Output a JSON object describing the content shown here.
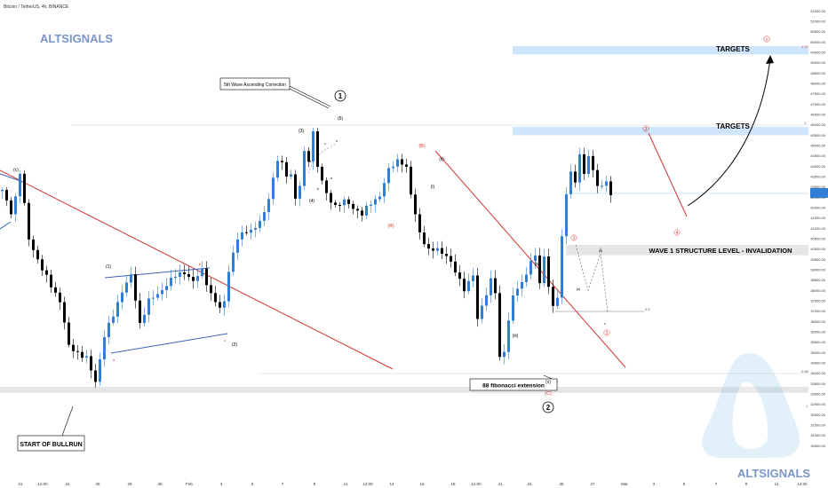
{
  "header": {
    "symbol_label": "Bitcoin / TetherUS, 4h, BINANCE"
  },
  "watermark": {
    "top": "ALTSIGNALS",
    "bottom": "ALTSIGNALS"
  },
  "colors": {
    "up": "#2f7fd6",
    "down": "#000000",
    "trend": "#d23434",
    "band": "#cfe5fb",
    "invalidation": "#e6e6e6",
    "label_red": "#d23434",
    "blue_line": "#3a63b8"
  },
  "chart_data": {
    "type": "candlestick",
    "title": "Bitcoin / TetherUS, 4h, BINANCE",
    "y_axis": {
      "min": 30000,
      "max": 51500,
      "position": "right",
      "ticks": [
        30500,
        31000,
        31500,
        32000,
        32500,
        33000,
        33500,
        34000,
        34500,
        35000,
        35500,
        36000,
        36500,
        37000,
        37500,
        38000,
        38500,
        39000,
        39500,
        40000,
        40500,
        41000,
        41500,
        42000,
        42500,
        43000,
        43500,
        44000,
        44500,
        45000,
        45500,
        46000,
        46500,
        47000,
        47500,
        48000,
        48500,
        49000,
        49500,
        50000,
        50500,
        51000,
        51500
      ]
    },
    "x_axis": {
      "tick_labels": [
        "21",
        "12:00",
        "24",
        "26",
        "28",
        "30",
        "Feb",
        "3",
        "5",
        "7",
        "9",
        "11",
        "12:00",
        "14",
        "16",
        "18",
        "12:00",
        "21",
        "23",
        "25",
        "27",
        "Mar",
        "3",
        "5",
        "7",
        "9",
        "11",
        "12:00"
      ]
    },
    "price_path": [
      [
        0,
        42800
      ],
      [
        2,
        41800
      ],
      [
        3,
        42500
      ],
      [
        4,
        43700
      ],
      [
        6,
        40500
      ],
      [
        9,
        39000
      ],
      [
        13,
        37500
      ],
      [
        15,
        35300
      ],
      [
        19,
        34700
      ],
      [
        21,
        33600
      ],
      [
        23,
        35800
      ],
      [
        25,
        36800
      ],
      [
        27,
        38000
      ],
      [
        29,
        38700
      ],
      [
        31,
        36400
      ],
      [
        33,
        37500
      ],
      [
        35,
        37800
      ],
      [
        37,
        38300
      ],
      [
        39,
        38700
      ],
      [
        41,
        38900
      ],
      [
        43,
        38400
      ],
      [
        45,
        39000
      ],
      [
        47,
        37800
      ],
      [
        49,
        37100
      ],
      [
        50,
        37500
      ],
      [
        51,
        39000
      ],
      [
        53,
        40500
      ],
      [
        55,
        40900
      ],
      [
        57,
        41000
      ],
      [
        59,
        41700
      ],
      [
        61,
        43400
      ],
      [
        62,
        44300
      ],
      [
        63,
        44100
      ],
      [
        64,
        43500
      ],
      [
        65,
        43700
      ],
      [
        66,
        42400
      ],
      [
        67,
        43100
      ],
      [
        68,
        44600
      ],
      [
        69,
        44300
      ],
      [
        70,
        45700
      ],
      [
        71,
        44000
      ],
      [
        73,
        42600
      ],
      [
        75,
        42100
      ],
      [
        77,
        42300
      ],
      [
        79,
        42000
      ],
      [
        81,
        41700
      ],
      [
        83,
        42200
      ],
      [
        85,
        42600
      ],
      [
        87,
        43800
      ],
      [
        89,
        44300
      ],
      [
        90,
        44200
      ],
      [
        91,
        43900
      ],
      [
        92,
        42600
      ],
      [
        94,
        40800
      ],
      [
        96,
        39900
      ],
      [
        98,
        40000
      ],
      [
        100,
        39700
      ],
      [
        102,
        38900
      ],
      [
        104,
        38100
      ],
      [
        106,
        38700
      ],
      [
        107,
        36600
      ],
      [
        109,
        37900
      ],
      [
        110,
        38500
      ],
      [
        111,
        37900
      ],
      [
        112,
        34700
      ],
      [
        113,
        35100
      ],
      [
        114,
        36600
      ],
      [
        115,
        37700
      ],
      [
        116,
        38100
      ],
      [
        117,
        38300
      ],
      [
        118,
        38900
      ],
      [
        119,
        39400
      ],
      [
        120,
        39700
      ],
      [
        121,
        38300
      ],
      [
        122,
        39600
      ],
      [
        123,
        38300
      ],
      [
        124,
        37200
      ],
      [
        125,
        37700
      ],
      [
        126,
        40500
      ],
      [
        127,
        42700
      ],
      [
        128,
        43800
      ],
      [
        129,
        43200
      ],
      [
        130,
        44600
      ],
      [
        131,
        43500
      ],
      [
        132,
        44600
      ],
      [
        133,
        43800
      ],
      [
        134,
        43100
      ],
      [
        135,
        43000
      ],
      [
        136,
        43200
      ],
      [
        137,
        42700
      ]
    ],
    "annotations": {
      "targets_upper": {
        "label": "TARGETS",
        "from": 49400,
        "to": 49800,
        "fib": "1.27"
      },
      "targets_lower": {
        "label": "TARGETS",
        "from": 45500,
        "to": 45900,
        "fib": "1"
      },
      "invalidation": {
        "label": "WAVE 1 STRUCTURE LEVEL - INVALIDATION",
        "from": 39700,
        "to": 40200
      },
      "support_band": {
        "from": 33050,
        "to": 33350
      },
      "fib_0_88": {
        "price": 34500,
        "label": "0.88"
      },
      "fib_1_bottom": {
        "price": 33100,
        "label": "1"
      },
      "fib_0_5": {
        "price": 37300,
        "label": "0.5"
      },
      "fib_0_label_top": "0",
      "callout_start": "START OF BULLRUN",
      "callout_fib": "88 fibonacci extension",
      "callout_correction": "5th Wave Ascending Correction",
      "wave_circle_1": "1",
      "wave_circle_2": "2",
      "labels_black": [
        "(c)",
        "(1)",
        "(2)",
        "(3)",
        "(4)",
        "(5)",
        "(i)",
        "(ii)",
        "(iii)",
        "(iv)",
        "(v)",
        "a",
        "b",
        "c",
        "d",
        "e",
        "a",
        "b",
        "c",
        "(a)",
        "(b)"
      ],
      "labels_red": [
        "(B)",
        "(A)",
        "(C)",
        "3",
        "4",
        "5",
        "1",
        "2",
        "b",
        "c"
      ]
    }
  }
}
